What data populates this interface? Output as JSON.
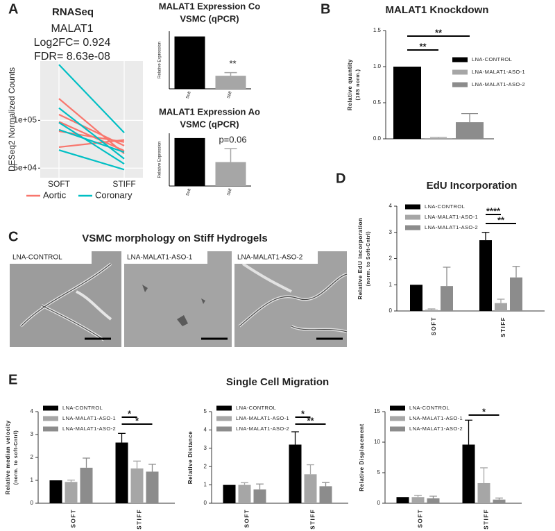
{
  "panels": [
    "A",
    "B",
    "C",
    "D",
    "E"
  ],
  "figure_titles": {
    "C": "VSMC morphology on Stiff Hydrogels",
    "E": "Single Cell Migration"
  },
  "images": [
    "LNA-CONTROL",
    "LNA-MALAT1-ASO-1",
    "LNA-MALAT1-ASO-2"
  ],
  "chart_data": [
    {
      "type": "line",
      "title": "RNASeq",
      "subtitle": [
        "MALAT1",
        "Log2FC= 0.924",
        "FDR= 8.63e-08"
      ],
      "ylabel": "DESeq2 Normalized Counts",
      "categories": [
        "SOFT",
        "STIFF"
      ],
      "ylim": [
        40000,
        162000
      ],
      "yticks": [
        {
          "value": 50000,
          "label": "5e+04"
        },
        {
          "value": 100000,
          "label": "1e+05"
        }
      ],
      "grid": true,
      "series": [
        {
          "name": "Aortic",
          "color": "#F8766D",
          "lines": [
            [
              122700,
              65200
            ],
            [
              106100,
              73500
            ],
            [
              98500,
              68200
            ],
            [
              88600,
              77300
            ],
            [
              72000,
              79500
            ]
          ]
        },
        {
          "name": "Coronary",
          "color": "#00BFC4",
          "lines": [
            [
              158300,
              87100
            ],
            [
              112900,
              59800
            ],
            [
              97700,
              54500
            ],
            [
              90200,
              66700
            ],
            [
              68900,
              48500
            ]
          ]
        }
      ]
    },
    {
      "type": "bar",
      "title": [
        "MALAT1 Expression Co",
        "VSMC (qPCR)"
      ],
      "ylabel": "Relative Expression",
      "categories": [
        "Soft",
        "Stiff"
      ],
      "values": [
        1.0,
        0.25
      ],
      "errors": [
        0,
        0.06
      ],
      "colors": [
        "#000000",
        "#a6a6a6"
      ],
      "annotation": "**",
      "ylim": [
        0,
        1.1
      ]
    },
    {
      "type": "bar",
      "title": [
        "MALAT1 Expression Ao",
        "VSMC (qPCR)"
      ],
      "ylabel": "Relative Expression",
      "categories": [
        "Soft",
        "Stiff"
      ],
      "values": [
        1.0,
        0.5
      ],
      "errors": [
        0,
        0.28
      ],
      "colors": [
        "#000000",
        "#a6a6a6"
      ],
      "annotation": "p=0.06",
      "ylim": [
        0,
        1.1
      ]
    },
    {
      "type": "grouped_bar",
      "title": "MALAT1 Knockdown",
      "ylabel": [
        "Relative quantity",
        "(18S norm.)"
      ],
      "ylim": [
        0,
        1.5
      ],
      "yticks": [
        {
          "value": 0,
          "label": "0.0"
        },
        {
          "value": 0.5,
          "label": "0.5"
        },
        {
          "value": 1,
          "label": "1.0"
        },
        {
          "value": 1.5,
          "label": "1.5"
        }
      ],
      "series": [
        {
          "name": "LNA-CONTROL",
          "color": "#000000",
          "values": [
            1.0
          ],
          "errors": [
            0
          ]
        },
        {
          "name": "LNA-MALAT1-ASO-1",
          "color": "#a6a6a6",
          "values": [
            0.01
          ],
          "errors": [
            0.01
          ]
        },
        {
          "name": "LNA-MALAT1-ASO-2",
          "color": "#8c8c8c",
          "values": [
            0.23
          ],
          "errors": [
            0.12
          ]
        }
      ],
      "significance": [
        "**",
        "**"
      ]
    },
    {
      "type": "grouped_bar",
      "title": "EdU Incorporation",
      "ylabel": [
        "Relative EdU incorporation",
        "(norm. to Soft-Cntrl)"
      ],
      "categories": [
        "SOFT",
        "STIFF"
      ],
      "ylim": [
        0,
        4
      ],
      "yticks": [
        0,
        1,
        2,
        3,
        4
      ],
      "series": [
        {
          "name": "LNA-CONTROL",
          "color": "#000000",
          "values": [
            1.0,
            2.7
          ],
          "errors": [
            0,
            0.3
          ]
        },
        {
          "name": "LNA-MALAT1-ASO-1",
          "color": "#a6a6a6",
          "values": [
            0.05,
            0.3
          ],
          "errors": [
            0.03,
            0.15
          ]
        },
        {
          "name": "LNA-MALAT1-ASO-2",
          "color": "#8c8c8c",
          "values": [
            0.95,
            1.28
          ],
          "errors": [
            0.72,
            0.42
          ]
        }
      ],
      "significance": [
        "****",
        "**"
      ]
    },
    {
      "type": "grouped_bar",
      "ylabel": [
        "Relative median velocity",
        "(norm. to soft-Cntrl)"
      ],
      "categories": [
        "SOFT",
        "STIFF"
      ],
      "ylim": [
        0,
        4
      ],
      "yticks": [
        0,
        1,
        2,
        3,
        4
      ],
      "series": [
        {
          "name": "LNA-CONTROL",
          "color": "#000000",
          "values": [
            1.0,
            2.65
          ],
          "errors": [
            0,
            0.4
          ]
        },
        {
          "name": "LNA-MALAT1-ASO-1",
          "color": "#a6a6a6",
          "values": [
            0.93,
            1.52
          ],
          "errors": [
            0.08,
            0.32
          ]
        },
        {
          "name": "LNA-MALAT1-ASO-2",
          "color": "#8c8c8c",
          "values": [
            1.55,
            1.38
          ],
          "errors": [
            0.42,
            0.32
          ]
        }
      ],
      "significance": [
        "*",
        "*"
      ]
    },
    {
      "type": "grouped_bar",
      "ylabel": [
        "Relative Distance"
      ],
      "categories": [
        "SOFT",
        "STIFF"
      ],
      "ylim": [
        0,
        5
      ],
      "yticks": [
        0,
        1,
        2,
        3,
        4,
        5
      ],
      "series": [
        {
          "name": "LNA-CONTROL",
          "color": "#000000",
          "values": [
            1.0,
            3.2
          ],
          "errors": [
            0,
            0.7
          ]
        },
        {
          "name": "LNA-MALAT1-ASO-1",
          "color": "#a6a6a6",
          "values": [
            1.0,
            1.58
          ],
          "errors": [
            0.12,
            0.52
          ]
        },
        {
          "name": "LNA-MALAT1-ASO-2",
          "color": "#8c8c8c",
          "values": [
            0.75,
            0.93
          ],
          "errors": [
            0.3,
            0.2
          ]
        }
      ],
      "significance": [
        "*",
        "**"
      ]
    },
    {
      "type": "grouped_bar",
      "ylabel": [
        "Relative Displacement"
      ],
      "categories": [
        "SOFT",
        "STIFF"
      ],
      "ylim": [
        0,
        15
      ],
      "yticks": [
        0,
        5,
        10,
        15
      ],
      "series": [
        {
          "name": "LNA-CONTROL",
          "color": "#000000",
          "values": [
            1.0,
            9.6
          ],
          "errors": [
            0,
            4.0
          ]
        },
        {
          "name": "LNA-MALAT1-ASO-1",
          "color": "#a6a6a6",
          "values": [
            1.0,
            3.3
          ],
          "errors": [
            0.3,
            2.5
          ]
        },
        {
          "name": "LNA-MALAT1-ASO-2",
          "color": "#8c8c8c",
          "values": [
            0.8,
            0.6
          ],
          "errors": [
            0.35,
            0.25
          ]
        }
      ],
      "significance": [
        "*"
      ]
    }
  ]
}
